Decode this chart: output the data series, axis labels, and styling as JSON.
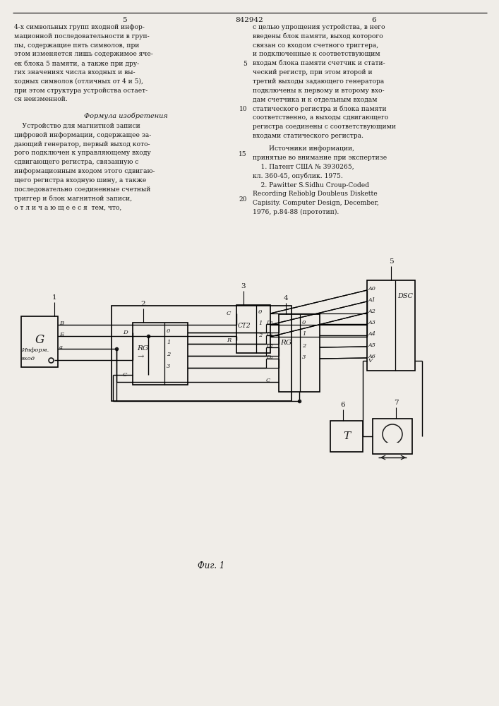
{
  "paper_color": "#f0ede8",
  "line_color": "#1a1a1a",
  "text_color": "#1a1a1a",
  "fig_width": 7.07,
  "fig_height": 10.0,
  "page_num_left": "5",
  "page_num_center": "842942",
  "page_num_right": "6",
  "col1_lines": [
    "4-х символьных групп входной инфор-",
    "мационной последовательности в груп-",
    "пы, содержащие пять символов, при",
    "этом изменяется лишь содержимое яче-",
    "ек блока 5 памяти, а также при дру-",
    "гих значениях числа входных и вы-",
    "ходных символов (отличных от 4 и 5),",
    "при этом структура устройства остает-",
    "ся неизменной."
  ],
  "col2_lines": [
    "с целью упрощения устройства, в него",
    "введены блок памяти, выход которого",
    "связан со входом счетного триггера,",
    "и подключенные к соответствующим",
    "входам блока памяти счетчик и стати-",
    "ческий регистр, при этом второй и",
    "третий выходы задающего генератора",
    "подключены к первому и второму вхо-",
    "дам счетчика и к отдельным входам",
    "статического регистра и блока памяти",
    "соответственно, а выходы сдвигающего",
    "регистра соединены с соответствующими",
    "входами статического регистра."
  ],
  "formula_title": "Формула изобретения",
  "formula_lines": [
    "    Устройство для магнитной записи",
    "цифровой информации, содержащее за-",
    "дающий генератор, первый выход кото-",
    "рого подключен к управляющему входу",
    "сдвигающего регистра, связанную с",
    "информационным входом этого сдвигаю-",
    "щего регистра входную шину, а также",
    "последовательно соединенные счетный",
    "триггер и блок магнитной записи,",
    "о т л и ч а ю щ е е с я  тем, что,"
  ],
  "sources_title": "        Источники информации,",
  "sources_lines": [
    "принятые во внимание при экспертизе",
    "    1. Патент США № 3930265,",
    "кл. 360-45, опублик. 1975.",
    "    2. Pawitter S.Sidhu Croup-Coded",
    "Recording Relioblg Doubleus Diskette",
    "Capisity. Computer Design, December,",
    "1976, р.84-88 (прототип)."
  ],
  "line_nums": [
    [
      5,
      4
    ],
    [
      10,
      9
    ],
    [
      15,
      14
    ],
    [
      20,
      19
    ]
  ],
  "caption": "Фиг. 1"
}
